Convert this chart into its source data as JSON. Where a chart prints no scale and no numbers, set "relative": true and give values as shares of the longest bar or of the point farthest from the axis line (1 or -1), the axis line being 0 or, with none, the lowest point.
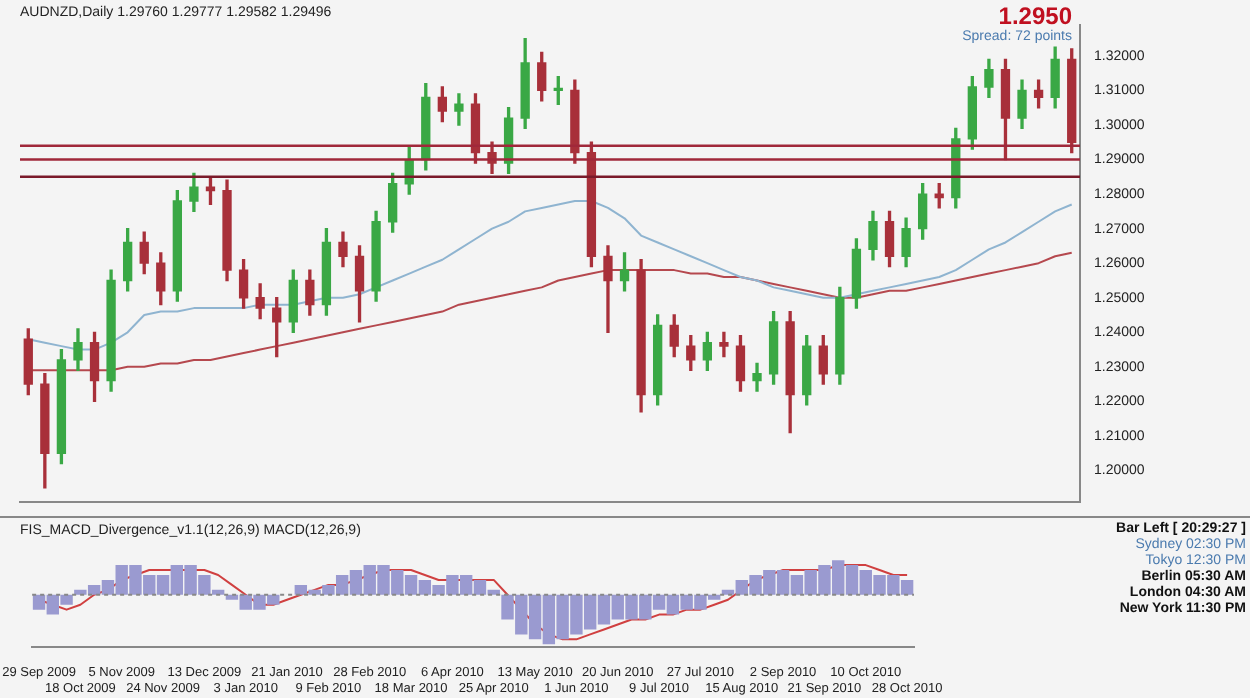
{
  "chart_data": [
    {
      "type": "candlestick",
      "title": "AUDNZD,Daily 1.29760 1.29777 1.29582 1.29496",
      "annotations": [
        "1.2950",
        "Spread: 72 points"
      ],
      "categories": [
        null,
        null,
        null,
        null,
        null,
        null,
        null,
        null,
        null,
        null,
        null,
        null,
        null,
        null,
        null,
        null,
        null,
        null,
        null,
        null,
        null,
        null,
        null,
        null,
        null,
        null,
        null,
        null,
        null,
        null,
        null,
        null,
        null,
        null,
        null,
        null,
        null,
        null,
        null,
        null,
        null,
        null,
        null,
        null,
        null,
        null,
        null,
        null,
        null,
        null,
        null,
        null,
        null,
        null,
        null,
        null,
        null,
        null,
        null,
        null,
        null,
        null,
        null,
        null
      ],
      "ohlc": [
        [
          1.238,
          1.241,
          1.222,
          1.225
        ],
        [
          1.225,
          1.228,
          1.195,
          1.205
        ],
        [
          1.205,
          1.235,
          1.202,
          1.232
        ],
        [
          1.232,
          1.241,
          1.229,
          1.237
        ],
        [
          1.237,
          1.24,
          1.22,
          1.226
        ],
        [
          1.226,
          1.258,
          1.223,
          1.255
        ],
        [
          1.255,
          1.27,
          1.252,
          1.266
        ],
        [
          1.266,
          1.269,
          1.257,
          1.26
        ],
        [
          1.26,
          1.263,
          1.248,
          1.252
        ],
        [
          1.252,
          1.281,
          1.249,
          1.278
        ],
        [
          1.278,
          1.286,
          1.275,
          1.282
        ],
        [
          1.282,
          1.285,
          1.277,
          1.281
        ],
        [
          1.281,
          1.284,
          1.255,
          1.258
        ],
        [
          1.258,
          1.261,
          1.247,
          1.25
        ],
        [
          1.25,
          1.254,
          1.244,
          1.247
        ],
        [
          1.247,
          1.25,
          1.233,
          1.243
        ],
        [
          1.243,
          1.258,
          1.24,
          1.255
        ],
        [
          1.255,
          1.258,
          1.245,
          1.248
        ],
        [
          1.248,
          1.27,
          1.245,
          1.266
        ],
        [
          1.266,
          1.269,
          1.259,
          1.262
        ],
        [
          1.262,
          1.265,
          1.243,
          1.252
        ],
        [
          1.252,
          1.275,
          1.249,
          1.272
        ],
        [
          1.272,
          1.286,
          1.269,
          1.283
        ],
        [
          1.283,
          1.294,
          1.28,
          1.29
        ],
        [
          1.29,
          1.312,
          1.287,
          1.308
        ],
        [
          1.308,
          1.311,
          1.301,
          1.304
        ],
        [
          1.304,
          1.309,
          1.3,
          1.306
        ],
        [
          1.306,
          1.309,
          1.289,
          1.292
        ],
        [
          1.292,
          1.295,
          1.286,
          1.289
        ],
        [
          1.289,
          1.305,
          1.286,
          1.302
        ],
        [
          1.302,
          1.325,
          1.299,
          1.318
        ],
        [
          1.318,
          1.321,
          1.307,
          1.31
        ],
        [
          1.31,
          1.314,
          1.306,
          1.31
        ],
        [
          1.31,
          1.313,
          1.289,
          1.292
        ],
        [
          1.292,
          1.295,
          1.259,
          1.262
        ],
        [
          1.262,
          1.265,
          1.24,
          1.255
        ],
        [
          1.255,
          1.263,
          1.252,
          1.258
        ],
        [
          1.258,
          1.261,
          1.217,
          1.222
        ],
        [
          1.222,
          1.245,
          1.219,
          1.242
        ],
        [
          1.242,
          1.245,
          1.233,
          1.236
        ],
        [
          1.236,
          1.239,
          1.229,
          1.232
        ],
        [
          1.232,
          1.24,
          1.229,
          1.237
        ],
        [
          1.237,
          1.24,
          1.233,
          1.236
        ],
        [
          1.236,
          1.239,
          1.223,
          1.226
        ],
        [
          1.226,
          1.231,
          1.223,
          1.228
        ],
        [
          1.228,
          1.246,
          1.225,
          1.243
        ],
        [
          1.243,
          1.246,
          1.211,
          1.222
        ],
        [
          1.222,
          1.239,
          1.219,
          1.236
        ],
        [
          1.236,
          1.239,
          1.225,
          1.228
        ],
        [
          1.228,
          1.253,
          1.225,
          1.25
        ],
        [
          1.25,
          1.267,
          1.247,
          1.264
        ],
        [
          1.264,
          1.275,
          1.261,
          1.272
        ],
        [
          1.272,
          1.275,
          1.259,
          1.262
        ],
        [
          1.262,
          1.273,
          1.259,
          1.27
        ],
        [
          1.27,
          1.283,
          1.267,
          1.28
        ],
        [
          1.28,
          1.283,
          1.276,
          1.279
        ],
        [
          1.279,
          1.299,
          1.276,
          1.296
        ],
        [
          1.296,
          1.314,
          1.293,
          1.311
        ],
        [
          1.311,
          1.319,
          1.308,
          1.316
        ],
        [
          1.316,
          1.319,
          1.29,
          1.302
        ],
        [
          1.302,
          1.313,
          1.299,
          1.31
        ],
        [
          1.31,
          1.313,
          1.305,
          1.308
        ],
        [
          1.308,
          1.3225,
          1.305,
          1.319
        ],
        [
          1.319,
          1.322,
          1.292,
          1.295
        ]
      ],
      "series": [
        {
          "type": "line",
          "color": "#8fb4d0",
          "values": [
            1.238,
            1.237,
            1.236,
            1.235,
            1.235,
            1.237,
            1.24,
            1.245,
            1.246,
            1.246,
            1.247,
            1.247,
            1.247,
            1.247,
            1.248,
            1.248,
            1.248,
            1.249,
            1.25,
            1.25,
            1.251,
            1.253,
            1.255,
            1.257,
            1.259,
            1.261,
            1.264,
            1.267,
            1.27,
            1.272,
            1.275,
            1.276,
            1.277,
            1.278,
            1.278,
            1.276,
            1.273,
            1.268,
            1.266,
            1.264,
            1.262,
            1.26,
            1.258,
            1.256,
            1.255,
            1.253,
            1.252,
            1.251,
            1.25,
            1.25,
            1.251,
            1.252,
            1.253,
            1.254,
            1.255,
            1.256,
            1.258,
            1.261,
            1.264,
            1.266,
            1.269,
            1.272,
            1.275,
            1.277
          ]
        },
        {
          "type": "line",
          "color": "#b5484e",
          "values": [
            1.229,
            1.229,
            1.229,
            1.229,
            1.229,
            1.229,
            1.23,
            1.23,
            1.231,
            1.231,
            1.232,
            1.232,
            1.233,
            1.234,
            1.235,
            1.236,
            1.237,
            1.238,
            1.239,
            1.24,
            1.241,
            1.242,
            1.243,
            1.244,
            1.245,
            1.246,
            1.248,
            1.249,
            1.25,
            1.251,
            1.252,
            1.253,
            1.255,
            1.256,
            1.257,
            1.258,
            1.258,
            1.258,
            1.258,
            1.258,
            1.257,
            1.257,
            1.256,
            1.256,
            1.255,
            1.254,
            1.253,
            1.252,
            1.251,
            1.25,
            1.25,
            1.251,
            1.252,
            1.252,
            1.253,
            1.254,
            1.255,
            1.256,
            1.257,
            1.258,
            1.259,
            1.26,
            1.262,
            1.263
          ]
        }
      ],
      "ylim": [
        1.191,
        1.329
      ],
      "yticks": [
        {
          "value": 1.2,
          "label": "1.20000"
        },
        {
          "value": 1.21,
          "label": "1.21000"
        },
        {
          "value": 1.22,
          "label": "1.22000"
        },
        {
          "value": 1.23,
          "label": "1.23000"
        },
        {
          "value": 1.24,
          "label": "1.24000"
        },
        {
          "value": 1.25,
          "label": "1.25000"
        },
        {
          "value": 1.26,
          "label": "1.26000"
        },
        {
          "value": 1.27,
          "label": "1.27000"
        },
        {
          "value": 1.28,
          "label": "1.28000"
        },
        {
          "value": 1.29,
          "label": "1.29000"
        },
        {
          "value": 1.3,
          "label": "1.30000"
        },
        {
          "value": 1.31,
          "label": "1.31000"
        },
        {
          "value": 1.32,
          "label": "1.32000"
        }
      ],
      "ref_lines": [
        {
          "axis": "y",
          "value": 1.294,
          "color": "#a0283a"
        },
        {
          "axis": "y",
          "value": 1.29,
          "color": "#a0283a"
        },
        {
          "axis": "y",
          "value": 1.285,
          "color": "#7a1a2a"
        }
      ],
      "tick_labels": "y"
    },
    {
      "type": "bar",
      "title": "FIS_MACD_Divergence_v1.1(12,26,9) MACD(12,26,9)",
      "annotations": [
        "Bar Left [ 20:29:27 ]",
        "Sydney 02:30 PM",
        "Tokyo 12:30 PM",
        "Berlin 05:30 AM",
        "London 04:30 AM",
        "New York 11:30 PM"
      ],
      "relative": true,
      "categories": [
        "29 Sep 2009",
        null,
        null,
        "18 Oct 2009",
        null,
        null,
        "5 Nov 2009",
        null,
        null,
        "24 Nov 2009",
        null,
        null,
        "13 Dec 2009",
        null,
        null,
        "3 Jan 2010",
        null,
        null,
        "21 Jan 2010",
        null,
        null,
        "9 Feb 2010",
        null,
        null,
        "28 Feb 2010",
        null,
        null,
        "18 Mar 2010",
        null,
        null,
        "6 Apr 2010",
        null,
        null,
        "25 Apr 2010",
        null,
        null,
        "13 May 2010",
        null,
        null,
        "1 Jun 2010",
        null,
        null,
        "20 Jun 2010",
        null,
        null,
        "9 Jul 2010",
        null,
        null,
        "27 Jul 2010",
        null,
        null,
        "15 Aug 2010",
        null,
        null,
        "2 Sep 2010",
        null,
        null,
        "21 Sep 2010",
        null,
        null,
        "10 Oct 2010",
        null,
        null,
        "28 Oct 2010"
      ],
      "series": [
        {
          "color": "#9a9ad0",
          "values": [
            -0.3,
            -0.4,
            -0.2,
            0.1,
            0.2,
            0.3,
            0.6,
            0.6,
            0.4,
            0.4,
            0.6,
            0.6,
            0.4,
            0.1,
            -0.1,
            -0.3,
            -0.3,
            -0.2,
            0,
            0.2,
            0.1,
            0.2,
            0.4,
            0.5,
            0.6,
            0.6,
            0.5,
            0.4,
            0.3,
            0.2,
            0.4,
            0.4,
            0.3,
            0.1,
            -0.5,
            -0.8,
            -0.9,
            -1,
            -0.9,
            -0.8,
            -0.7,
            -0.6,
            -0.5,
            -0.5,
            -0.5,
            -0.3,
            -0.4,
            -0.3,
            -0.3,
            -0.1,
            0.1,
            0.3,
            0.4,
            0.5,
            0.5,
            0.4,
            0.5,
            0.6,
            0.7,
            0.6,
            0.5,
            0.4,
            0.4,
            0.3
          ]
        },
        {
          "type": "line",
          "color": "#d04040",
          "values": [
            -0.1,
            -0.2,
            -0.3,
            -0.2,
            0,
            0.1,
            0.3,
            0.4,
            0.5,
            0.5,
            0.5,
            0.5,
            0.5,
            0.4,
            0.2,
            0,
            -0.2,
            -0.2,
            -0.1,
            0,
            0.1,
            0.2,
            0.2,
            0.3,
            0.4,
            0.5,
            0.5,
            0.5,
            0.4,
            0.3,
            0.3,
            0.3,
            0.3,
            0.3,
            0,
            -0.3,
            -0.6,
            -0.8,
            -0.9,
            -0.9,
            -0.8,
            -0.7,
            -0.6,
            -0.5,
            -0.5,
            -0.4,
            -0.4,
            -0.3,
            -0.3,
            -0.2,
            -0.1,
            0.1,
            0.3,
            0.4,
            0.5,
            0.5,
            0.5,
            0.5,
            0.6,
            0.6,
            0.6,
            0.5,
            0.4,
            0.4
          ]
        }
      ],
      "ref_lines": [
        {
          "axis": "y",
          "value": 0,
          "color": "#888888",
          "line_style": "dotted"
        }
      ],
      "tick_labels": "x"
    }
  ]
}
